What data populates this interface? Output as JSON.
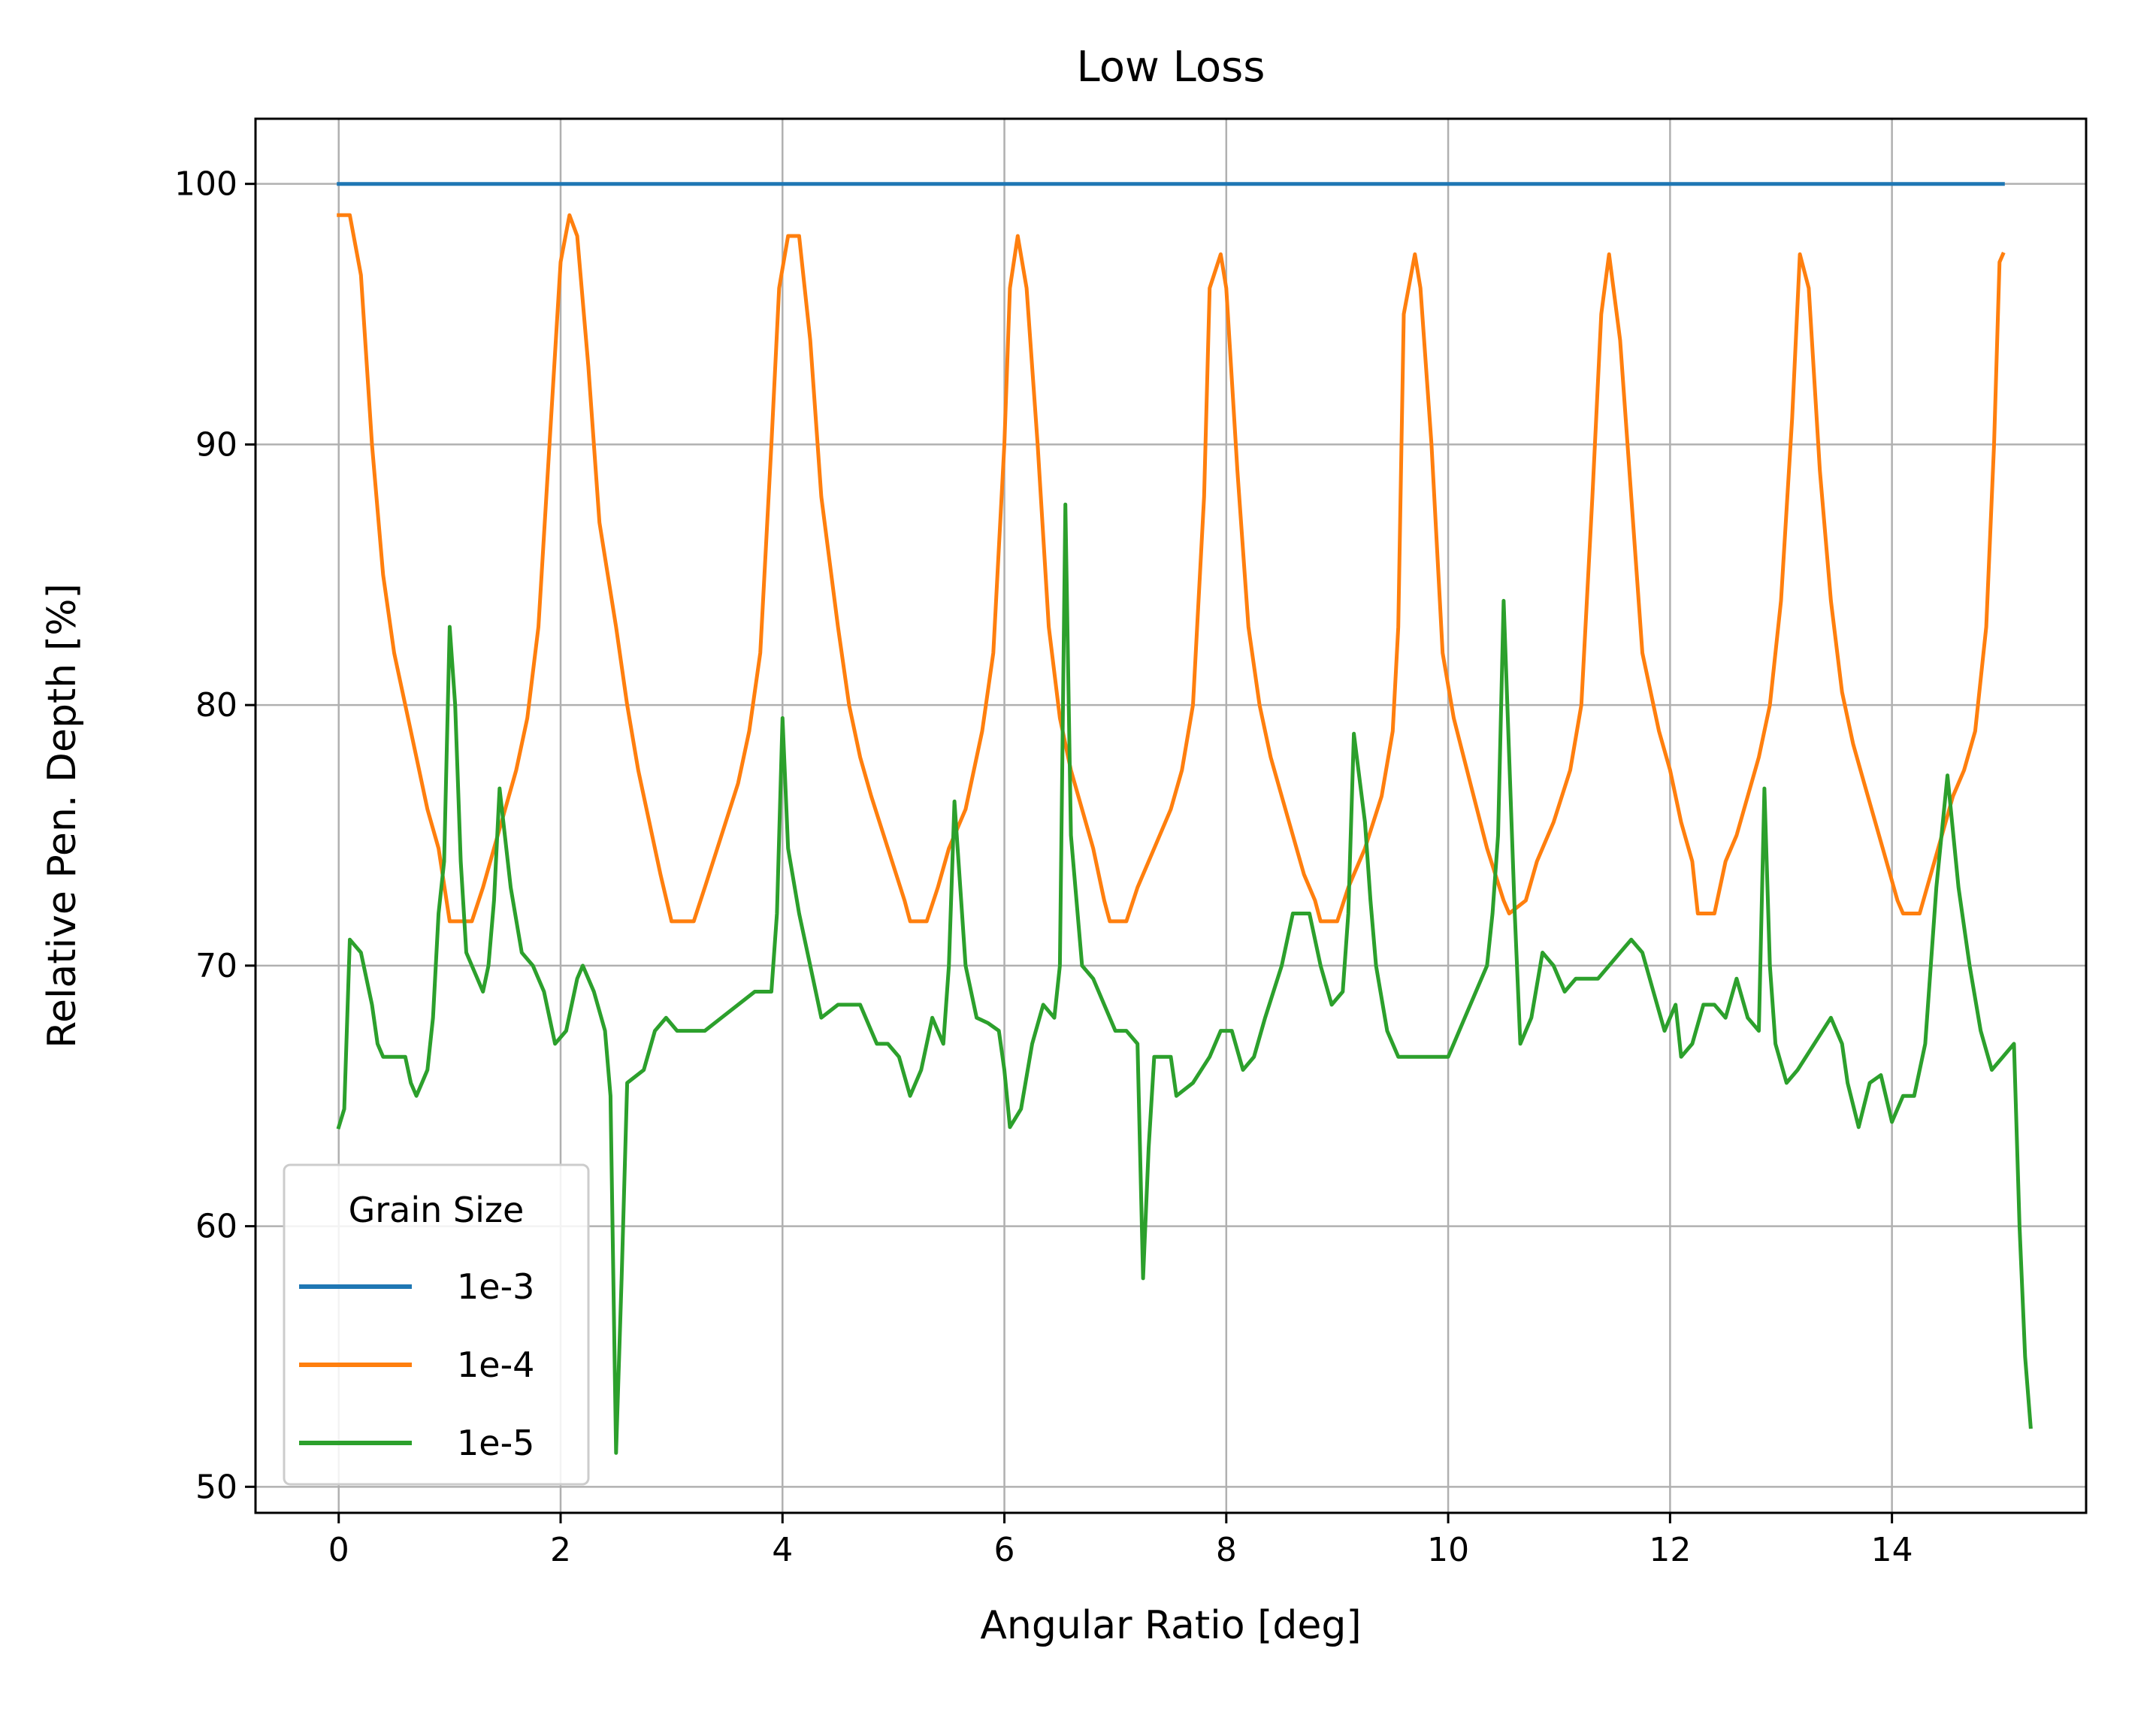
{
  "chart_data": {
    "type": "line",
    "title": "Low Loss",
    "xlabel": "Angular Ratio [deg]",
    "ylabel": "Relative Pen. Depth [%]",
    "xlim": [
      -0.75,
      15.75
    ],
    "ylim": [
      49,
      102.5
    ],
    "xticks": [
      0,
      2,
      4,
      6,
      8,
      10,
      12,
      14
    ],
    "yticks": [
      50,
      60,
      70,
      80,
      90,
      100
    ],
    "grid": true,
    "legend": {
      "title": "Grain Size",
      "placement": "lower-left"
    },
    "series": [
      {
        "name": "1e-3",
        "color": "#1f77b4",
        "points": [
          [
            0,
            100
          ],
          [
            15,
            100
          ]
        ]
      },
      {
        "name": "1e-4",
        "color": "#ff7f0e",
        "points": [
          [
            0,
            98.8
          ],
          [
            0.1,
            98.8
          ],
          [
            0.2,
            96.5
          ],
          [
            0.3,
            90
          ],
          [
            0.4,
            85
          ],
          [
            0.5,
            82
          ],
          [
            0.6,
            80
          ],
          [
            0.7,
            78
          ],
          [
            0.8,
            76
          ],
          [
            0.9,
            74.5
          ],
          [
            1.0,
            71.7
          ],
          [
            1.1,
            71.7
          ],
          [
            1.2,
            71.7
          ],
          [
            1.3,
            73
          ],
          [
            1.4,
            74.5
          ],
          [
            1.5,
            76
          ],
          [
            1.6,
            77.5
          ],
          [
            1.7,
            79.5
          ],
          [
            1.8,
            83
          ],
          [
            1.9,
            90
          ],
          [
            2.0,
            97
          ],
          [
            2.08,
            98.8
          ],
          [
            2.15,
            98
          ],
          [
            2.25,
            93
          ],
          [
            2.35,
            87
          ],
          [
            2.5,
            83
          ],
          [
            2.6,
            80
          ],
          [
            2.7,
            77.5
          ],
          [
            2.8,
            75.5
          ],
          [
            2.9,
            73.5
          ],
          [
            3.0,
            71.7
          ],
          [
            3.1,
            71.7
          ],
          [
            3.2,
            71.7
          ],
          [
            3.3,
            73
          ],
          [
            3.45,
            75
          ],
          [
            3.6,
            77
          ],
          [
            3.7,
            79
          ],
          [
            3.8,
            82
          ],
          [
            3.9,
            90
          ],
          [
            3.97,
            96
          ],
          [
            4.05,
            98
          ],
          [
            4.15,
            98
          ],
          [
            4.25,
            94
          ],
          [
            4.35,
            88
          ],
          [
            4.5,
            83
          ],
          [
            4.6,
            80
          ],
          [
            4.7,
            78
          ],
          [
            4.8,
            76.5
          ],
          [
            4.95,
            74.5
          ],
          [
            5.1,
            72.5
          ],
          [
            5.15,
            71.7
          ],
          [
            5.3,
            71.7
          ],
          [
            5.4,
            73
          ],
          [
            5.5,
            74.5
          ],
          [
            5.65,
            76
          ],
          [
            5.8,
            79
          ],
          [
            5.9,
            82
          ],
          [
            6.0,
            90
          ],
          [
            6.05,
            96
          ],
          [
            6.12,
            98
          ],
          [
            6.2,
            96
          ],
          [
            6.3,
            90
          ],
          [
            6.4,
            83
          ],
          [
            6.5,
            79.5
          ],
          [
            6.6,
            77.5
          ],
          [
            6.7,
            76
          ],
          [
            6.8,
            74.5
          ],
          [
            6.9,
            72.5
          ],
          [
            6.95,
            71.7
          ],
          [
            7.1,
            71.7
          ],
          [
            7.2,
            73
          ],
          [
            7.35,
            74.5
          ],
          [
            7.5,
            76
          ],
          [
            7.6,
            77.5
          ],
          [
            7.7,
            80
          ],
          [
            7.8,
            88
          ],
          [
            7.85,
            96
          ],
          [
            7.95,
            97.3
          ],
          [
            8.0,
            96
          ],
          [
            8.1,
            89
          ],
          [
            8.2,
            83
          ],
          [
            8.3,
            80
          ],
          [
            8.4,
            78
          ],
          [
            8.5,
            76.5
          ],
          [
            8.6,
            75
          ],
          [
            8.7,
            73.5
          ],
          [
            8.8,
            72.5
          ],
          [
            8.85,
            71.7
          ],
          [
            9.0,
            71.7
          ],
          [
            9.1,
            73
          ],
          [
            9.25,
            74.5
          ],
          [
            9.4,
            76.5
          ],
          [
            9.5,
            79
          ],
          [
            9.55,
            83
          ],
          [
            9.6,
            95
          ],
          [
            9.7,
            97.3
          ],
          [
            9.75,
            96
          ],
          [
            9.85,
            90
          ],
          [
            9.95,
            82
          ],
          [
            10.05,
            79.5
          ],
          [
            10.2,
            77
          ],
          [
            10.35,
            74.5
          ],
          [
            10.5,
            72.5
          ],
          [
            10.55,
            72
          ],
          [
            10.7,
            72.5
          ],
          [
            10.8,
            74
          ],
          [
            10.95,
            75.5
          ],
          [
            11.1,
            77.5
          ],
          [
            11.2,
            80
          ],
          [
            11.3,
            88
          ],
          [
            11.38,
            95
          ],
          [
            11.45,
            97.3
          ],
          [
            11.55,
            94
          ],
          [
            11.65,
            88
          ],
          [
            11.75,
            82
          ],
          [
            11.9,
            79
          ],
          [
            12.0,
            77.5
          ],
          [
            12.1,
            75.5
          ],
          [
            12.2,
            74
          ],
          [
            12.25,
            72
          ],
          [
            12.4,
            72
          ],
          [
            12.5,
            74
          ],
          [
            12.6,
            75
          ],
          [
            12.7,
            76.5
          ],
          [
            12.8,
            78
          ],
          [
            12.9,
            80
          ],
          [
            13.0,
            84
          ],
          [
            13.1,
            91
          ],
          [
            13.17,
            97.3
          ],
          [
            13.25,
            96
          ],
          [
            13.35,
            89
          ],
          [
            13.45,
            84
          ],
          [
            13.55,
            80.5
          ],
          [
            13.65,
            78.5
          ],
          [
            13.75,
            77
          ],
          [
            13.85,
            75.5
          ],
          [
            13.95,
            74
          ],
          [
            14.05,
            72.5
          ],
          [
            14.1,
            72
          ],
          [
            14.25,
            72
          ],
          [
            14.35,
            73.5
          ],
          [
            14.45,
            75
          ],
          [
            14.55,
            76.5
          ],
          [
            14.65,
            77.5
          ],
          [
            14.75,
            79
          ],
          [
            14.85,
            83
          ],
          [
            14.92,
            90
          ],
          [
            14.97,
            97
          ],
          [
            15.0,
            97.3
          ]
        ]
      },
      {
        "name": "1e-5",
        "color": "#2ca02c",
        "points": [
          [
            0,
            63.8
          ],
          [
            0.05,
            64.5
          ],
          [
            0.1,
            71
          ],
          [
            0.2,
            70.5
          ],
          [
            0.3,
            68.5
          ],
          [
            0.35,
            67
          ],
          [
            0.4,
            66.5
          ],
          [
            0.6,
            66.5
          ],
          [
            0.65,
            65.5
          ],
          [
            0.7,
            65
          ],
          [
            0.75,
            65.5
          ],
          [
            0.8,
            66
          ],
          [
            0.85,
            68
          ],
          [
            0.9,
            72
          ],
          [
            0.95,
            74
          ],
          [
            1.0,
            83
          ],
          [
            1.05,
            80
          ],
          [
            1.1,
            74
          ],
          [
            1.15,
            70.5
          ],
          [
            1.25,
            69.5
          ],
          [
            1.3,
            69
          ],
          [
            1.35,
            70
          ],
          [
            1.4,
            72.5
          ],
          [
            1.45,
            76.8
          ],
          [
            1.55,
            73
          ],
          [
            1.65,
            70.5
          ],
          [
            1.75,
            70
          ],
          [
            1.85,
            69
          ],
          [
            1.95,
            67
          ],
          [
            2.05,
            67.5
          ],
          [
            2.15,
            69.5
          ],
          [
            2.2,
            70
          ],
          [
            2.3,
            69
          ],
          [
            2.4,
            67.5
          ],
          [
            2.45,
            65
          ],
          [
            2.5,
            51.3
          ],
          [
            2.55,
            58
          ],
          [
            2.6,
            65.5
          ],
          [
            2.75,
            66
          ],
          [
            2.85,
            67.5
          ],
          [
            2.95,
            68
          ],
          [
            3.05,
            67.5
          ],
          [
            3.3,
            67.5
          ],
          [
            3.45,
            68
          ],
          [
            3.6,
            68.5
          ],
          [
            3.75,
            69
          ],
          [
            3.9,
            69
          ],
          [
            3.95,
            72
          ],
          [
            4.0,
            79.5
          ],
          [
            4.05,
            74.5
          ],
          [
            4.15,
            72
          ],
          [
            4.25,
            70
          ],
          [
            4.35,
            68
          ],
          [
            4.5,
            68.5
          ],
          [
            4.7,
            68.5
          ],
          [
            4.8,
            67.5
          ],
          [
            4.85,
            67
          ],
          [
            4.95,
            67
          ],
          [
            5.05,
            66.5
          ],
          [
            5.15,
            65
          ],
          [
            5.25,
            66
          ],
          [
            5.35,
            68
          ],
          [
            5.45,
            67
          ],
          [
            5.5,
            70
          ],
          [
            5.55,
            76.3
          ],
          [
            5.65,
            70
          ],
          [
            5.75,
            68
          ],
          [
            5.85,
            67.8
          ],
          [
            5.95,
            67.5
          ],
          [
            6.0,
            66
          ],
          [
            6.05,
            63.8
          ],
          [
            6.15,
            64.5
          ],
          [
            6.25,
            67
          ],
          [
            6.35,
            68.5
          ],
          [
            6.45,
            68
          ],
          [
            6.5,
            70
          ],
          [
            6.55,
            87.7
          ],
          [
            6.6,
            75
          ],
          [
            6.7,
            70
          ],
          [
            6.8,
            69.5
          ],
          [
            6.9,
            68.5
          ],
          [
            7.0,
            67.5
          ],
          [
            7.1,
            67.5
          ],
          [
            7.2,
            67
          ],
          [
            7.25,
            58
          ],
          [
            7.3,
            63
          ],
          [
            7.35,
            66.5
          ],
          [
            7.5,
            66.5
          ],
          [
            7.55,
            65
          ],
          [
            7.7,
            65.5
          ],
          [
            7.85,
            66.5
          ],
          [
            7.95,
            67.5
          ],
          [
            8.05,
            67.5
          ],
          [
            8.15,
            66
          ],
          [
            8.25,
            66.5
          ],
          [
            8.35,
            68
          ],
          [
            8.5,
            70
          ],
          [
            8.6,
            72
          ],
          [
            8.75,
            72
          ],
          [
            8.85,
            70
          ],
          [
            8.95,
            68.5
          ],
          [
            9.05,
            69
          ],
          [
            9.1,
            72
          ],
          [
            9.15,
            78.9
          ],
          [
            9.25,
            75.5
          ],
          [
            9.3,
            72.5
          ],
          [
            9.35,
            70
          ],
          [
            9.45,
            67.5
          ],
          [
            9.55,
            66.5
          ],
          [
            10.0,
            66.5
          ],
          [
            10.05,
            67
          ],
          [
            10.15,
            68
          ],
          [
            10.25,
            69
          ],
          [
            10.35,
            70
          ],
          [
            10.4,
            72
          ],
          [
            10.45,
            75
          ],
          [
            10.5,
            84
          ],
          [
            10.55,
            78
          ],
          [
            10.6,
            72
          ],
          [
            10.65,
            67
          ],
          [
            10.75,
            68
          ],
          [
            10.85,
            70.5
          ],
          [
            10.95,
            70
          ],
          [
            11.05,
            69
          ],
          [
            11.15,
            69.5
          ],
          [
            11.35,
            69.5
          ],
          [
            11.45,
            70
          ],
          [
            11.55,
            70.5
          ],
          [
            11.65,
            71
          ],
          [
            11.75,
            70.5
          ],
          [
            11.85,
            69
          ],
          [
            11.95,
            67.5
          ],
          [
            12.05,
            68.5
          ],
          [
            12.1,
            66.5
          ],
          [
            12.2,
            67
          ],
          [
            12.3,
            68.5
          ],
          [
            12.4,
            68.5
          ],
          [
            12.5,
            68
          ],
          [
            12.6,
            69.5
          ],
          [
            12.7,
            68
          ],
          [
            12.8,
            67.5
          ],
          [
            12.85,
            76.8
          ],
          [
            12.9,
            70
          ],
          [
            12.95,
            67
          ],
          [
            13.05,
            65.5
          ],
          [
            13.15,
            66
          ],
          [
            13.3,
            67
          ],
          [
            13.45,
            68
          ],
          [
            13.55,
            67
          ],
          [
            13.6,
            65.5
          ],
          [
            13.7,
            63.8
          ],
          [
            13.8,
            65.5
          ],
          [
            13.9,
            65.8
          ],
          [
            14.0,
            64
          ],
          [
            14.1,
            65
          ],
          [
            14.2,
            65
          ],
          [
            14.3,
            67
          ],
          [
            14.4,
            73
          ],
          [
            14.5,
            77.3
          ],
          [
            14.6,
            73
          ],
          [
            14.7,
            70
          ],
          [
            14.8,
            67.5
          ],
          [
            14.9,
            66
          ],
          [
            15.0,
            66.5
          ],
          [
            15.1,
            67
          ],
          [
            15.15,
            60
          ],
          [
            15.2,
            55
          ],
          [
            15.25,
            52.3
          ]
        ]
      }
    ]
  }
}
